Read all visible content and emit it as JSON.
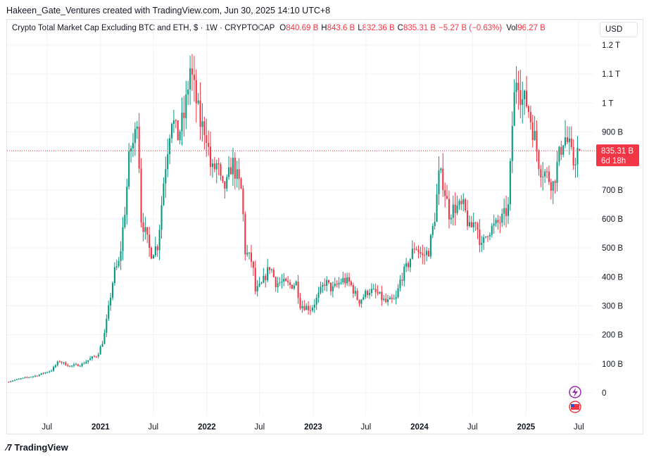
{
  "caption": "Hakeen_Gate_Ventures created with TradingView.com, Jun 30, 2025 14:10 UTC+8",
  "legend": {
    "symbol": "Crypto Total Market Cap Excluding BTC and ETH, $ · 1W · CRYPTOCAP",
    "open_label": "O",
    "open": "840.69 B",
    "high_label": "H",
    "high": "843.6 B",
    "low_label": "L",
    "low": "832.36 B",
    "close_label": "C",
    "close": "835.31 B",
    "change": "−5.27 B (−0.63%)",
    "vol_label": "Vol",
    "vol": "96.27 B"
  },
  "currency_button": "USD",
  "price_tag": {
    "price": "835.31 B",
    "countdown": "6d 18h"
  },
  "branding": "TradingView",
  "colors": {
    "up": "#089981",
    "down": "#f23645",
    "grid": "#f0f3fa",
    "axis_text": "#131722"
  },
  "icons": {
    "lightning": "lightning-icon",
    "flag": "us-flag-icon"
  },
  "chart_data": {
    "type": "candlestick",
    "title": "Crypto Total Market Cap Excluding BTC and ETH",
    "interval": "1W",
    "y_unit": "B",
    "ylim": [
      -20,
      1240
    ],
    "y_ticks": [
      {
        "v": 0,
        "label": "0"
      },
      {
        "v": 100,
        "label": "100 B"
      },
      {
        "v": 200,
        "label": "200 B"
      },
      {
        "v": 300,
        "label": "300 B"
      },
      {
        "v": 400,
        "label": "400 B"
      },
      {
        "v": 500,
        "label": "500 B"
      },
      {
        "v": 600,
        "label": "600 B"
      },
      {
        "v": 700,
        "label": "700 B"
      },
      {
        "v": 800,
        "label": "800 B"
      },
      {
        "v": 900,
        "label": "900 B"
      },
      {
        "v": 1000,
        "label": "1 T"
      },
      {
        "v": 1100,
        "label": "1.1 T"
      },
      {
        "v": 1200,
        "label": "1.2 T"
      }
    ],
    "xlim": [
      "2020-02-15",
      "2025-08-20"
    ],
    "x_ticks": [
      {
        "date": "2020-07-01",
        "label": "Jul",
        "bold": false
      },
      {
        "date": "2021-01-01",
        "label": "2021",
        "bold": true
      },
      {
        "date": "2021-07-01",
        "label": "Jul",
        "bold": false
      },
      {
        "date": "2022-01-01",
        "label": "2022",
        "bold": true
      },
      {
        "date": "2022-07-01",
        "label": "Jul",
        "bold": false
      },
      {
        "date": "2023-01-01",
        "label": "2023",
        "bold": true
      },
      {
        "date": "2023-07-01",
        "label": "Jul",
        "bold": false
      },
      {
        "date": "2024-01-01",
        "label": "2024",
        "bold": true
      },
      {
        "date": "2024-07-01",
        "label": "Jul",
        "bold": false
      },
      {
        "date": "2025-01-01",
        "label": "2025",
        "bold": true
      },
      {
        "date": "2025-07-01",
        "label": "Jul",
        "bold": false
      }
    ],
    "last_price": 835.31,
    "close_path": [
      [
        "2020-02-15",
        37
      ],
      [
        "2020-04-01",
        48
      ],
      [
        "2020-06-01",
        60
      ],
      [
        "2020-07-20",
        78
      ],
      [
        "2020-08-15",
        110
      ],
      [
        "2020-09-20",
        92
      ],
      [
        "2020-11-01",
        98
      ],
      [
        "2020-12-01",
        118
      ],
      [
        "2020-12-25",
        130
      ],
      [
        "2021-01-15",
        185
      ],
      [
        "2021-02-01",
        290
      ],
      [
        "2021-02-20",
        415
      ],
      [
        "2021-03-10",
        450
      ],
      [
        "2021-04-01",
        660
      ],
      [
        "2021-04-15",
        840
      ],
      [
        "2021-05-01",
        870
      ],
      [
        "2021-05-12",
        980
      ],
      [
        "2021-05-22",
        610
      ],
      [
        "2021-06-10",
        540
      ],
      [
        "2021-06-25",
        480
      ],
      [
        "2021-07-20",
        510
      ],
      [
        "2021-08-10",
        740
      ],
      [
        "2021-09-05",
        960
      ],
      [
        "2021-09-25",
        880
      ],
      [
        "2021-10-20",
        960
      ],
      [
        "2021-11-08",
        1120
      ],
      [
        "2021-11-28",
        1010
      ],
      [
        "2021-12-15",
        920
      ],
      [
        "2022-01-01",
        910
      ],
      [
        "2022-01-20",
        760
      ],
      [
        "2022-02-10",
        790
      ],
      [
        "2022-02-25",
        700
      ],
      [
        "2022-03-15",
        720
      ],
      [
        "2022-04-01",
        800
      ],
      [
        "2022-04-15",
        750
      ],
      [
        "2022-05-05",
        690
      ],
      [
        "2022-05-15",
        490
      ],
      [
        "2022-06-10",
        450
      ],
      [
        "2022-06-20",
        350
      ],
      [
        "2022-07-10",
        370
      ],
      [
        "2022-08-10",
        440
      ],
      [
        "2022-08-28",
        380
      ],
      [
        "2022-09-20",
        380
      ],
      [
        "2022-10-20",
        370
      ],
      [
        "2022-11-08",
        380
      ],
      [
        "2022-11-20",
        305
      ],
      [
        "2022-12-28",
        290
      ],
      [
        "2023-01-20",
        330
      ],
      [
        "2023-02-15",
        385
      ],
      [
        "2023-03-10",
        355
      ],
      [
        "2023-04-15",
        390
      ],
      [
        "2023-05-10",
        380
      ],
      [
        "2023-06-10",
        315
      ],
      [
        "2023-07-15",
        355
      ],
      [
        "2023-08-15",
        340
      ],
      [
        "2023-09-10",
        312
      ],
      [
        "2023-10-15",
        320
      ],
      [
        "2023-11-01",
        395
      ],
      [
        "2023-11-25",
        440
      ],
      [
        "2023-12-20",
        510
      ],
      [
        "2024-01-15",
        470
      ],
      [
        "2024-02-05",
        490
      ],
      [
        "2024-02-25",
        600
      ],
      [
        "2024-03-12",
        755
      ],
      [
        "2024-03-25",
        730
      ],
      [
        "2024-04-15",
        620
      ],
      [
        "2024-05-05",
        640
      ],
      [
        "2024-06-05",
        640
      ],
      [
        "2024-06-25",
        560
      ],
      [
        "2024-07-15",
        600
      ],
      [
        "2024-08-05",
        500
      ],
      [
        "2024-08-25",
        560
      ],
      [
        "2024-09-20",
        575
      ],
      [
        "2024-10-15",
        600
      ],
      [
        "2024-11-05",
        640
      ],
      [
        "2024-11-20",
        970
      ],
      [
        "2024-12-05",
        1120
      ],
      [
        "2024-12-20",
        1010
      ],
      [
        "2025-01-08",
        1000
      ],
      [
        "2025-02-03",
        880
      ],
      [
        "2025-02-20",
        780
      ],
      [
        "2025-03-10",
        760
      ],
      [
        "2025-04-07",
        720
      ],
      [
        "2025-05-01",
        830
      ],
      [
        "2025-05-15",
        890
      ],
      [
        "2025-06-01",
        850
      ],
      [
        "2025-06-15",
        790
      ],
      [
        "2025-06-30",
        835.31
      ]
    ]
  }
}
